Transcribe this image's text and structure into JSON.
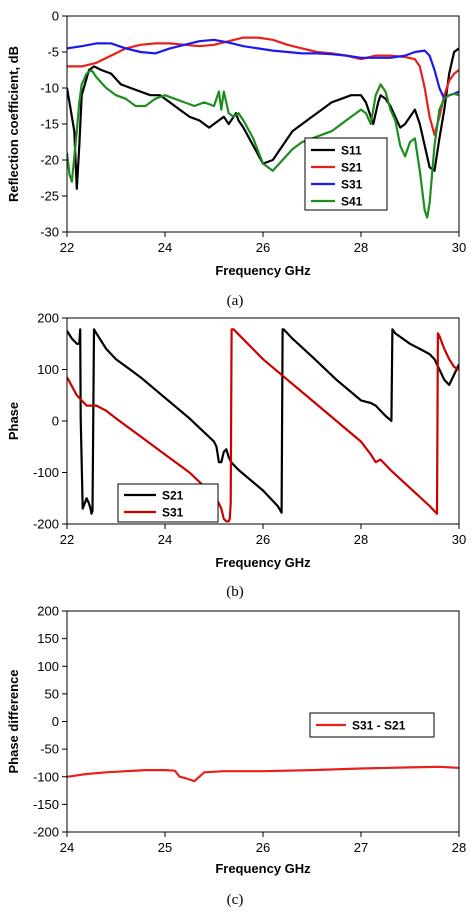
{
  "chart_data": [
    {
      "type": "line",
      "caption": "(a)",
      "xlabel": "Frequency GHz",
      "ylabel": "Reflection coefficient, dB",
      "xlim": [
        22,
        30
      ],
      "ylim": [
        -30,
        0
      ],
      "xticks": [
        "22",
        "24",
        "26",
        "28",
        "30"
      ],
      "yticks": [
        "0",
        "-5",
        "-10",
        "-15",
        "-20",
        "-25",
        "-30"
      ],
      "legend_position": "right",
      "grid": false,
      "series": [
        {
          "name": "S11",
          "color": "#000000",
          "x": [
            22.0,
            22.05,
            22.15,
            22.2,
            22.25,
            22.3,
            22.45,
            22.55,
            22.7,
            22.9,
            23.1,
            23.3,
            23.5,
            23.7,
            23.9,
            24.1,
            24.3,
            24.5,
            24.7,
            24.9,
            25.0,
            25.1,
            25.2,
            25.3,
            25.45,
            25.5,
            25.6,
            25.8,
            26.0,
            26.2,
            26.4,
            26.6,
            26.8,
            27.0,
            27.2,
            27.4,
            27.6,
            27.8,
            28.0,
            28.1,
            28.2,
            28.25,
            28.3,
            28.35,
            28.4,
            28.5,
            28.6,
            28.7,
            28.8,
            28.9,
            29.0,
            29.1,
            29.2,
            29.3,
            29.4,
            29.5,
            29.6,
            29.7,
            29.8,
            29.9,
            30.0
          ],
          "y": [
            -10.0,
            -12.0,
            -16.0,
            -24.0,
            -18.0,
            -11.0,
            -7.5,
            -7.0,
            -7.5,
            -8.0,
            -9.5,
            -10.0,
            -10.5,
            -11.0,
            -11.0,
            -12.0,
            -13.0,
            -14.0,
            -14.5,
            -15.5,
            -15.0,
            -14.5,
            -14.0,
            -15.0,
            -13.5,
            -14.5,
            -15.5,
            -18.0,
            -20.5,
            -20.0,
            -18.0,
            -16.0,
            -15.0,
            -14.0,
            -13.0,
            -12.0,
            -11.5,
            -11.0,
            -11.0,
            -12.0,
            -14.0,
            -15.0,
            -13.5,
            -12.0,
            -11.0,
            -11.5,
            -12.5,
            -14.0,
            -15.5,
            -15.0,
            -14.0,
            -13.0,
            -15.0,
            -18.0,
            -21.0,
            -21.5,
            -17.0,
            -13.0,
            -8.0,
            -5.0,
            -4.5
          ]
        },
        {
          "name": "S21",
          "color": "#e8201c",
          "x": [
            22.0,
            22.3,
            22.6,
            22.9,
            23.2,
            23.5,
            23.8,
            24.1,
            24.4,
            24.7,
            25.0,
            25.3,
            25.6,
            25.9,
            26.2,
            26.5,
            26.8,
            27.1,
            27.4,
            27.7,
            28.0,
            28.3,
            28.6,
            28.9,
            29.1,
            29.2,
            29.3,
            29.4,
            29.5,
            29.6,
            29.7,
            29.8,
            29.9,
            30.0
          ],
          "y": [
            -7.0,
            -7.0,
            -6.5,
            -5.5,
            -4.5,
            -4.0,
            -3.8,
            -3.8,
            -4.0,
            -4.2,
            -4.0,
            -3.5,
            -3.0,
            -3.0,
            -3.3,
            -4.0,
            -4.5,
            -5.0,
            -5.2,
            -5.5,
            -6.0,
            -5.5,
            -5.5,
            -5.7,
            -6.0,
            -7.0,
            -10.0,
            -14.0,
            -16.5,
            -14.0,
            -11.0,
            -9.0,
            -8.0,
            -7.5
          ]
        },
        {
          "name": "S31",
          "color": "#1a1aee",
          "x": [
            22.0,
            22.3,
            22.6,
            22.9,
            23.2,
            23.5,
            23.8,
            24.1,
            24.4,
            24.7,
            25.0,
            25.3,
            25.6,
            25.9,
            26.2,
            26.5,
            26.8,
            27.1,
            27.4,
            27.7,
            28.0,
            28.3,
            28.6,
            28.9,
            29.1,
            29.3,
            29.4,
            29.5,
            29.6,
            29.7,
            29.8,
            29.9,
            30.0
          ],
          "y": [
            -4.5,
            -4.2,
            -3.8,
            -3.8,
            -4.5,
            -5.0,
            -5.2,
            -4.5,
            -4.0,
            -3.5,
            -3.3,
            -3.7,
            -4.2,
            -4.5,
            -4.8,
            -5.0,
            -5.2,
            -5.2,
            -5.3,
            -5.5,
            -5.8,
            -5.8,
            -5.8,
            -5.5,
            -5.0,
            -4.8,
            -5.5,
            -7.5,
            -10.0,
            -11.5,
            -11.0,
            -10.8,
            -10.5
          ]
        },
        {
          "name": "S41",
          "color": "#1e8c1e",
          "x": [
            22.0,
            22.05,
            22.1,
            22.2,
            22.25,
            22.3,
            22.4,
            22.5,
            22.6,
            22.8,
            23.0,
            23.2,
            23.4,
            23.6,
            23.8,
            24.0,
            24.2,
            24.4,
            24.6,
            24.8,
            25.0,
            25.1,
            25.15,
            25.2,
            25.25,
            25.3,
            25.4,
            25.5,
            25.6,
            25.8,
            26.0,
            26.2,
            26.4,
            26.6,
            26.8,
            27.0,
            27.2,
            27.4,
            27.6,
            27.8,
            28.0,
            28.1,
            28.2,
            28.3,
            28.4,
            28.5,
            28.6,
            28.7,
            28.8,
            28.9,
            29.0,
            29.1,
            29.2,
            29.3,
            29.35,
            29.4,
            29.5,
            29.6,
            29.7,
            29.8,
            29.9,
            30.0
          ],
          "y": [
            -19.0,
            -22.0,
            -23.0,
            -16.0,
            -12.0,
            -9.5,
            -8.0,
            -7.5,
            -8.5,
            -10.0,
            -11.0,
            -11.5,
            -12.5,
            -12.5,
            -11.5,
            -11.0,
            -11.5,
            -12.0,
            -12.5,
            -12.0,
            -12.5,
            -10.5,
            -13.0,
            -10.5,
            -12.0,
            -13.5,
            -14.0,
            -13.5,
            -14.5,
            -17.0,
            -20.5,
            -21.5,
            -20.0,
            -18.5,
            -17.5,
            -17.0,
            -16.5,
            -16.0,
            -15.0,
            -14.0,
            -13.0,
            -13.5,
            -15.0,
            -11.0,
            -9.5,
            -10.5,
            -13.0,
            -14.5,
            -18.0,
            -19.5,
            -17.5,
            -17.0,
            -21.5,
            -27.0,
            -28.0,
            -26.0,
            -18.0,
            -13.0,
            -11.5,
            -11.0,
            -10.8,
            -11.0
          ]
        }
      ]
    },
    {
      "type": "line",
      "caption": "(b)",
      "xlabel": "Frequency GHz",
      "ylabel": "Phase",
      "xlim": [
        22,
        30
      ],
      "ylim": [
        -200,
        200
      ],
      "xticks": [
        "22",
        "24",
        "26",
        "28",
        "30"
      ],
      "yticks": [
        "200",
        "100",
        "0",
        "-100",
        "-200"
      ],
      "legend_position": "bottom-left",
      "grid": false,
      "series": [
        {
          "name": "S21",
          "color": "#000000",
          "x": [
            22.0,
            22.1,
            22.2,
            22.25,
            22.27,
            22.28,
            22.32,
            22.4,
            22.45,
            22.48,
            22.5,
            22.52,
            22.55,
            22.6,
            22.8,
            23.0,
            23.5,
            24.0,
            24.5,
            25.0,
            25.05,
            25.1,
            25.15,
            25.2,
            25.25,
            25.3,
            25.35,
            25.5,
            26.0,
            26.3,
            26.38,
            26.4,
            26.42,
            26.6,
            27.0,
            27.5,
            28.0,
            28.2,
            28.3,
            28.4,
            28.5,
            28.6,
            28.62,
            28.64,
            28.7,
            29.0,
            29.2,
            29.4,
            29.5,
            29.6,
            29.7,
            29.8,
            29.9,
            30.0
          ],
          "y": [
            175,
            160,
            150,
            150,
            178,
            5,
            -170,
            -150,
            -160,
            -170,
            -180,
            -175,
            178,
            170,
            140,
            120,
            85,
            45,
            5,
            -40,
            -50,
            -80,
            -80,
            -60,
            -55,
            -70,
            -80,
            -95,
            -135,
            -165,
            -178,
            178,
            178,
            160,
            125,
            80,
            40,
            35,
            30,
            20,
            10,
            2,
            0,
            178,
            170,
            150,
            140,
            130,
            120,
            100,
            80,
            70,
            90,
            110
          ]
        },
        {
          "name": "S31",
          "color": "#cc0000",
          "x": [
            22.0,
            22.2,
            22.4,
            22.6,
            22.8,
            23.0,
            23.5,
            24.0,
            24.5,
            25.0,
            25.1,
            25.15,
            25.2,
            25.25,
            25.3,
            25.32,
            25.34,
            25.36,
            25.4,
            26.0,
            26.5,
            27.0,
            27.5,
            28.0,
            28.2,
            28.3,
            28.4,
            28.6,
            29.0,
            29.4,
            29.55,
            29.57,
            29.6,
            29.7,
            29.8,
            29.9,
            30.0
          ],
          "y": [
            85,
            50,
            30,
            30,
            20,
            5,
            -30,
            -65,
            -100,
            -145,
            -160,
            -170,
            -190,
            -195,
            -195,
            -190,
            -160,
            178,
            178,
            120,
            80,
            40,
            0,
            -40,
            -65,
            -80,
            -75,
            -95,
            -130,
            -165,
            -180,
            170,
            165,
            140,
            120,
            105,
            100
          ]
        }
      ]
    },
    {
      "type": "line",
      "caption": "(c)",
      "xlabel": "Frequency GHz",
      "ylabel": "Phase difference",
      "xlim": [
        24,
        28
      ],
      "ylim": [
        -200,
        200
      ],
      "xticks": [
        "24",
        "25",
        "26",
        "27",
        "28"
      ],
      "yticks": [
        "200",
        "150",
        "100",
        "50",
        "0",
        "-50",
        "-100",
        "-150",
        "-200"
      ],
      "legend_position": "right",
      "grid": false,
      "series": [
        {
          "name": "S31 - S21",
          "color": "#e8201c",
          "x": [
            24.0,
            24.2,
            24.4,
            24.6,
            24.8,
            25.0,
            25.1,
            25.15,
            25.2,
            25.25,
            25.3,
            25.35,
            25.4,
            25.6,
            26.0,
            26.5,
            27.0,
            27.5,
            27.8,
            28.0
          ],
          "y": [
            -100,
            -95,
            -92,
            -90,
            -88,
            -88,
            -89,
            -100,
            -102,
            -105,
            -108,
            -100,
            -92,
            -90,
            -90,
            -88,
            -85,
            -83,
            -82,
            -84
          ]
        }
      ]
    }
  ]
}
